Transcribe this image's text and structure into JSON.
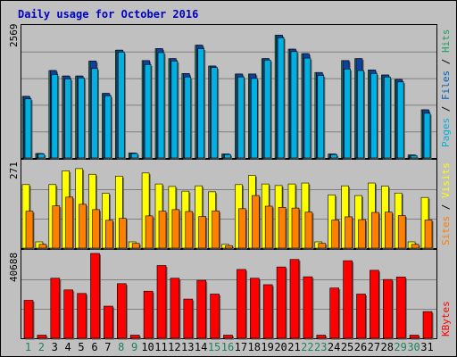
{
  "chart_data": [
    {
      "type": "bar",
      "title": "Daily usage for October 2016",
      "ymax_label": "2569",
      "ylim": [
        0,
        2569
      ],
      "categories": [
        "1",
        "2",
        "3",
        "4",
        "5",
        "6",
        "7",
        "8",
        "9",
        "10",
        "11",
        "12",
        "13",
        "14",
        "15",
        "16",
        "17",
        "18",
        "19",
        "20",
        "21",
        "22",
        "23",
        "24",
        "25",
        "26",
        "27",
        "28",
        "29",
        "30",
        "31"
      ],
      "weekend_days": [
        "1",
        "2",
        "8",
        "9",
        "15",
        "16",
        "22",
        "23",
        "29",
        "30"
      ],
      "legend": [
        {
          "text": "Pages",
          "color": "#00b0e0"
        },
        {
          "text": " / ",
          "color": "#000000"
        },
        {
          "text": "Files",
          "color": "#0060c0"
        },
        {
          "text": " / ",
          "color": "#000000"
        },
        {
          "text": "Hits",
          "color": "#20a060"
        }
      ],
      "series": [
        {
          "name": "Hits",
          "color": "#208060",
          "values": [
            1240,
            90,
            1760,
            1650,
            1650,
            1950,
            1300,
            2170,
            100,
            1960,
            2200,
            2000,
            1700,
            2270,
            1850,
            80,
            1690,
            1690,
            2000,
            2470,
            2190,
            2100,
            1720,
            80,
            1960,
            2000,
            1770,
            1670,
            1580,
            60,
            970
          ]
        },
        {
          "name": "Files",
          "color": "#1040a0",
          "values": [
            1240,
            90,
            1760,
            1650,
            1650,
            1950,
            1300,
            2170,
            100,
            1960,
            2200,
            2000,
            1700,
            2270,
            1850,
            80,
            1690,
            1690,
            2000,
            2470,
            2190,
            2100,
            1720,
            80,
            1960,
            2000,
            1770,
            1670,
            1580,
            60,
            970
          ]
        },
        {
          "name": "Pages",
          "color": "#00b0e0",
          "values": [
            1190,
            80,
            1680,
            1590,
            1610,
            1800,
            1250,
            2130,
            90,
            1880,
            2120,
            1950,
            1630,
            2200,
            1820,
            70,
            1630,
            1600,
            1970,
            2420,
            2140,
            2010,
            1660,
            70,
            1790,
            1760,
            1700,
            1630,
            1530,
            50,
            900
          ]
        }
      ]
    },
    {
      "type": "bar",
      "ymax_label": "271",
      "ylim": [
        0,
        271
      ],
      "categories": [
        "1",
        "2",
        "3",
        "4",
        "5",
        "6",
        "7",
        "8",
        "9",
        "10",
        "11",
        "12",
        "13",
        "14",
        "15",
        "16",
        "17",
        "18",
        "19",
        "20",
        "21",
        "22",
        "23",
        "24",
        "25",
        "26",
        "27",
        "28",
        "29",
        "30",
        "31"
      ],
      "legend": [
        {
          "text": "Sites",
          "color": "#ff8000"
        },
        {
          "text": " / ",
          "color": "#000000"
        },
        {
          "text": "Visits",
          "color": "#ffff00"
        }
      ],
      "series": [
        {
          "name": "Visits",
          "color": "#ffff00",
          "values": [
            203,
            20,
            203,
            247,
            254,
            236,
            175,
            230,
            20,
            240,
            205,
            197,
            182,
            199,
            180,
            12,
            203,
            232,
            205,
            200,
            205,
            208,
            20,
            170,
            199,
            168,
            208,
            198,
            176,
            20,
            162
          ]
        },
        {
          "name": "Sites",
          "color": "#ff8000",
          "values": [
            118,
            12,
            135,
            163,
            140,
            123,
            89,
            95,
            15,
            103,
            118,
            123,
            117,
            101,
            119,
            8,
            126,
            168,
            134,
            130,
            128,
            115,
            15,
            90,
            100,
            91,
            114,
            115,
            104,
            12,
            90
          ]
        }
      ]
    },
    {
      "type": "bar",
      "ymax_label": "40688",
      "ylim": [
        0,
        40688
      ],
      "categories": [
        "1",
        "2",
        "3",
        "4",
        "5",
        "6",
        "7",
        "8",
        "9",
        "10",
        "11",
        "12",
        "13",
        "14",
        "15",
        "16",
        "17",
        "18",
        "19",
        "20",
        "21",
        "22",
        "23",
        "24",
        "25",
        "26",
        "27",
        "28",
        "29",
        "30",
        "31"
      ],
      "legend": [
        {
          "text": "KBytes",
          "color": "#ff0000"
        }
      ],
      "series": [
        {
          "name": "KBytes",
          "color": "#ff0000",
          "values": [
            18200,
            1500,
            28800,
            23200,
            21500,
            40688,
            15400,
            26200,
            1500,
            22600,
            34900,
            28800,
            18800,
            27800,
            21200,
            1500,
            33000,
            28800,
            25700,
            34200,
            37800,
            29500,
            1500,
            24100,
            37200,
            21200,
            32600,
            28200,
            29400,
            1500,
            12800
          ]
        }
      ]
    }
  ]
}
